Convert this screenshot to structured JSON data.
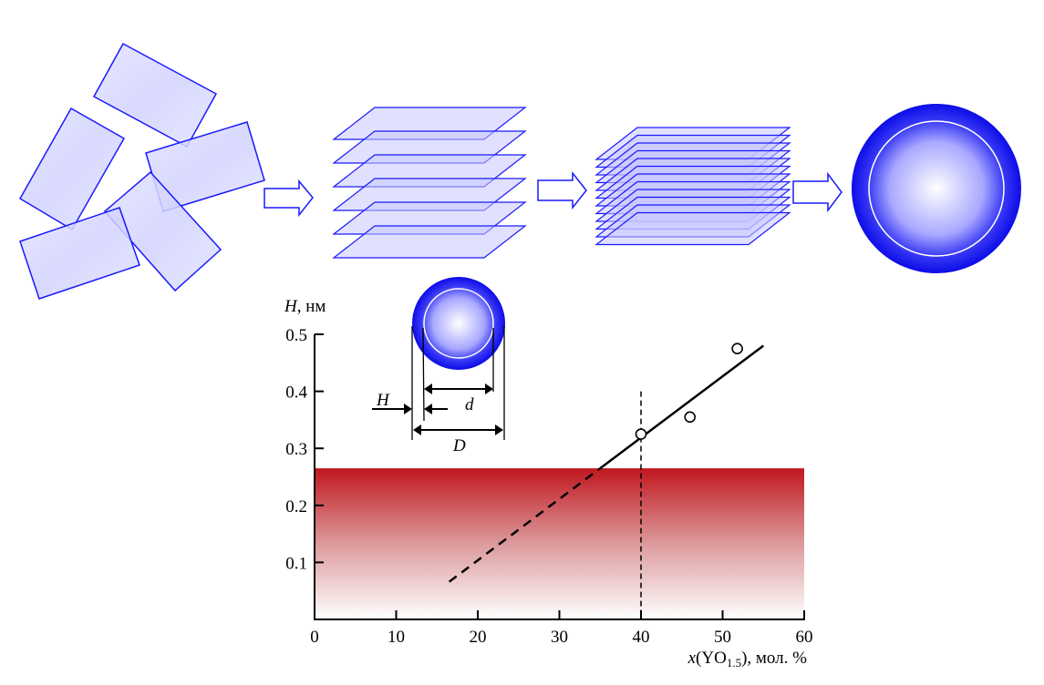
{
  "colors": {
    "plate_stroke": "#1a1aff",
    "plate_fill": "#dcdcff",
    "sphere_outer": "#1010ee",
    "band_top": "#c0171e",
    "line": "#000000"
  },
  "flow": {
    "stages": [
      "random-plates",
      "loose-stack",
      "dense-stack",
      "sphere"
    ],
    "arrow_icon": "hollow-right-arrow"
  },
  "inset": {
    "H_label": "H",
    "d_label": "d",
    "D_label": "D"
  },
  "chart_data": {
    "type": "scatter",
    "ylabel_var": "H",
    "ylabel_unit": ", нм",
    "xlabel_var": "x",
    "xlabel_formula": "(YO",
    "xlabel_sub": "1.5",
    "xlabel_unit": "), мол. %",
    "xlim": [
      0,
      60
    ],
    "ylim": [
      0,
      0.5
    ],
    "xticks": [
      "0",
      "10",
      "20",
      "30",
      "40",
      "50",
      "60"
    ],
    "yticks": [
      "0.1",
      "0.2",
      "0.3",
      "0.4",
      "0.5"
    ],
    "points": [
      {
        "x": 40,
        "y": 0.325
      },
      {
        "x": 46,
        "y": 0.355
      },
      {
        "x": 51.8,
        "y": 0.475
      }
    ],
    "fit_solid": [
      [
        35,
        0.265
      ],
      [
        55,
        0.48
      ]
    ],
    "fit_dashed": [
      [
        16.5,
        0.066
      ],
      [
        35,
        0.265
      ]
    ],
    "vline_x": 40,
    "vline_top": 0.4,
    "band_max_y": 0.265
  }
}
